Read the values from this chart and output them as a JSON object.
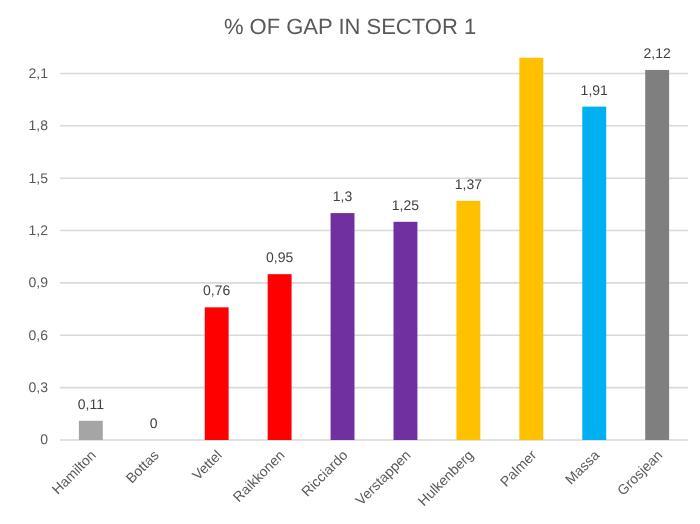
{
  "chart_data": {
    "type": "bar",
    "title": "% OF GAP IN SECTOR 1",
    "categories": [
      "Hamilton",
      "Bottas",
      "Vettel",
      "Raikkonen",
      "Ricciardo",
      "Verstappen",
      "Hulkenberg",
      "Palmer",
      "Massa",
      "Grosjean"
    ],
    "values": [
      0.11,
      0,
      0.76,
      0.95,
      1.3,
      1.25,
      1.37,
      2.19,
      1.91,
      2.12
    ],
    "colors": [
      "#a5a5a5",
      "#a5a5a5",
      "#ff0000",
      "#ff0000",
      "#7030a0",
      "#7030a0",
      "#ffc000",
      "#ffc000",
      "#00b0f0",
      "#7f7f7f"
    ],
    "value_labels": [
      "0,11",
      "0",
      "0,76",
      "0,95",
      "1,3",
      "1,25",
      "1,37",
      null,
      "1,91",
      "2,12"
    ],
    "ylim": [
      0,
      2.2
    ],
    "yticks": [
      {
        "value": 0,
        "label": "0"
      },
      {
        "value": 0.3,
        "label": "0,3"
      },
      {
        "value": 0.6,
        "label": "0,6"
      },
      {
        "value": 0.9,
        "label": "0,9"
      },
      {
        "value": 1.2,
        "label": "1,2"
      },
      {
        "value": 1.5,
        "label": "1,5"
      },
      {
        "value": 1.8,
        "label": "1,8"
      },
      {
        "value": 2.1,
        "label": "2,1"
      }
    ],
    "grid": "y"
  }
}
